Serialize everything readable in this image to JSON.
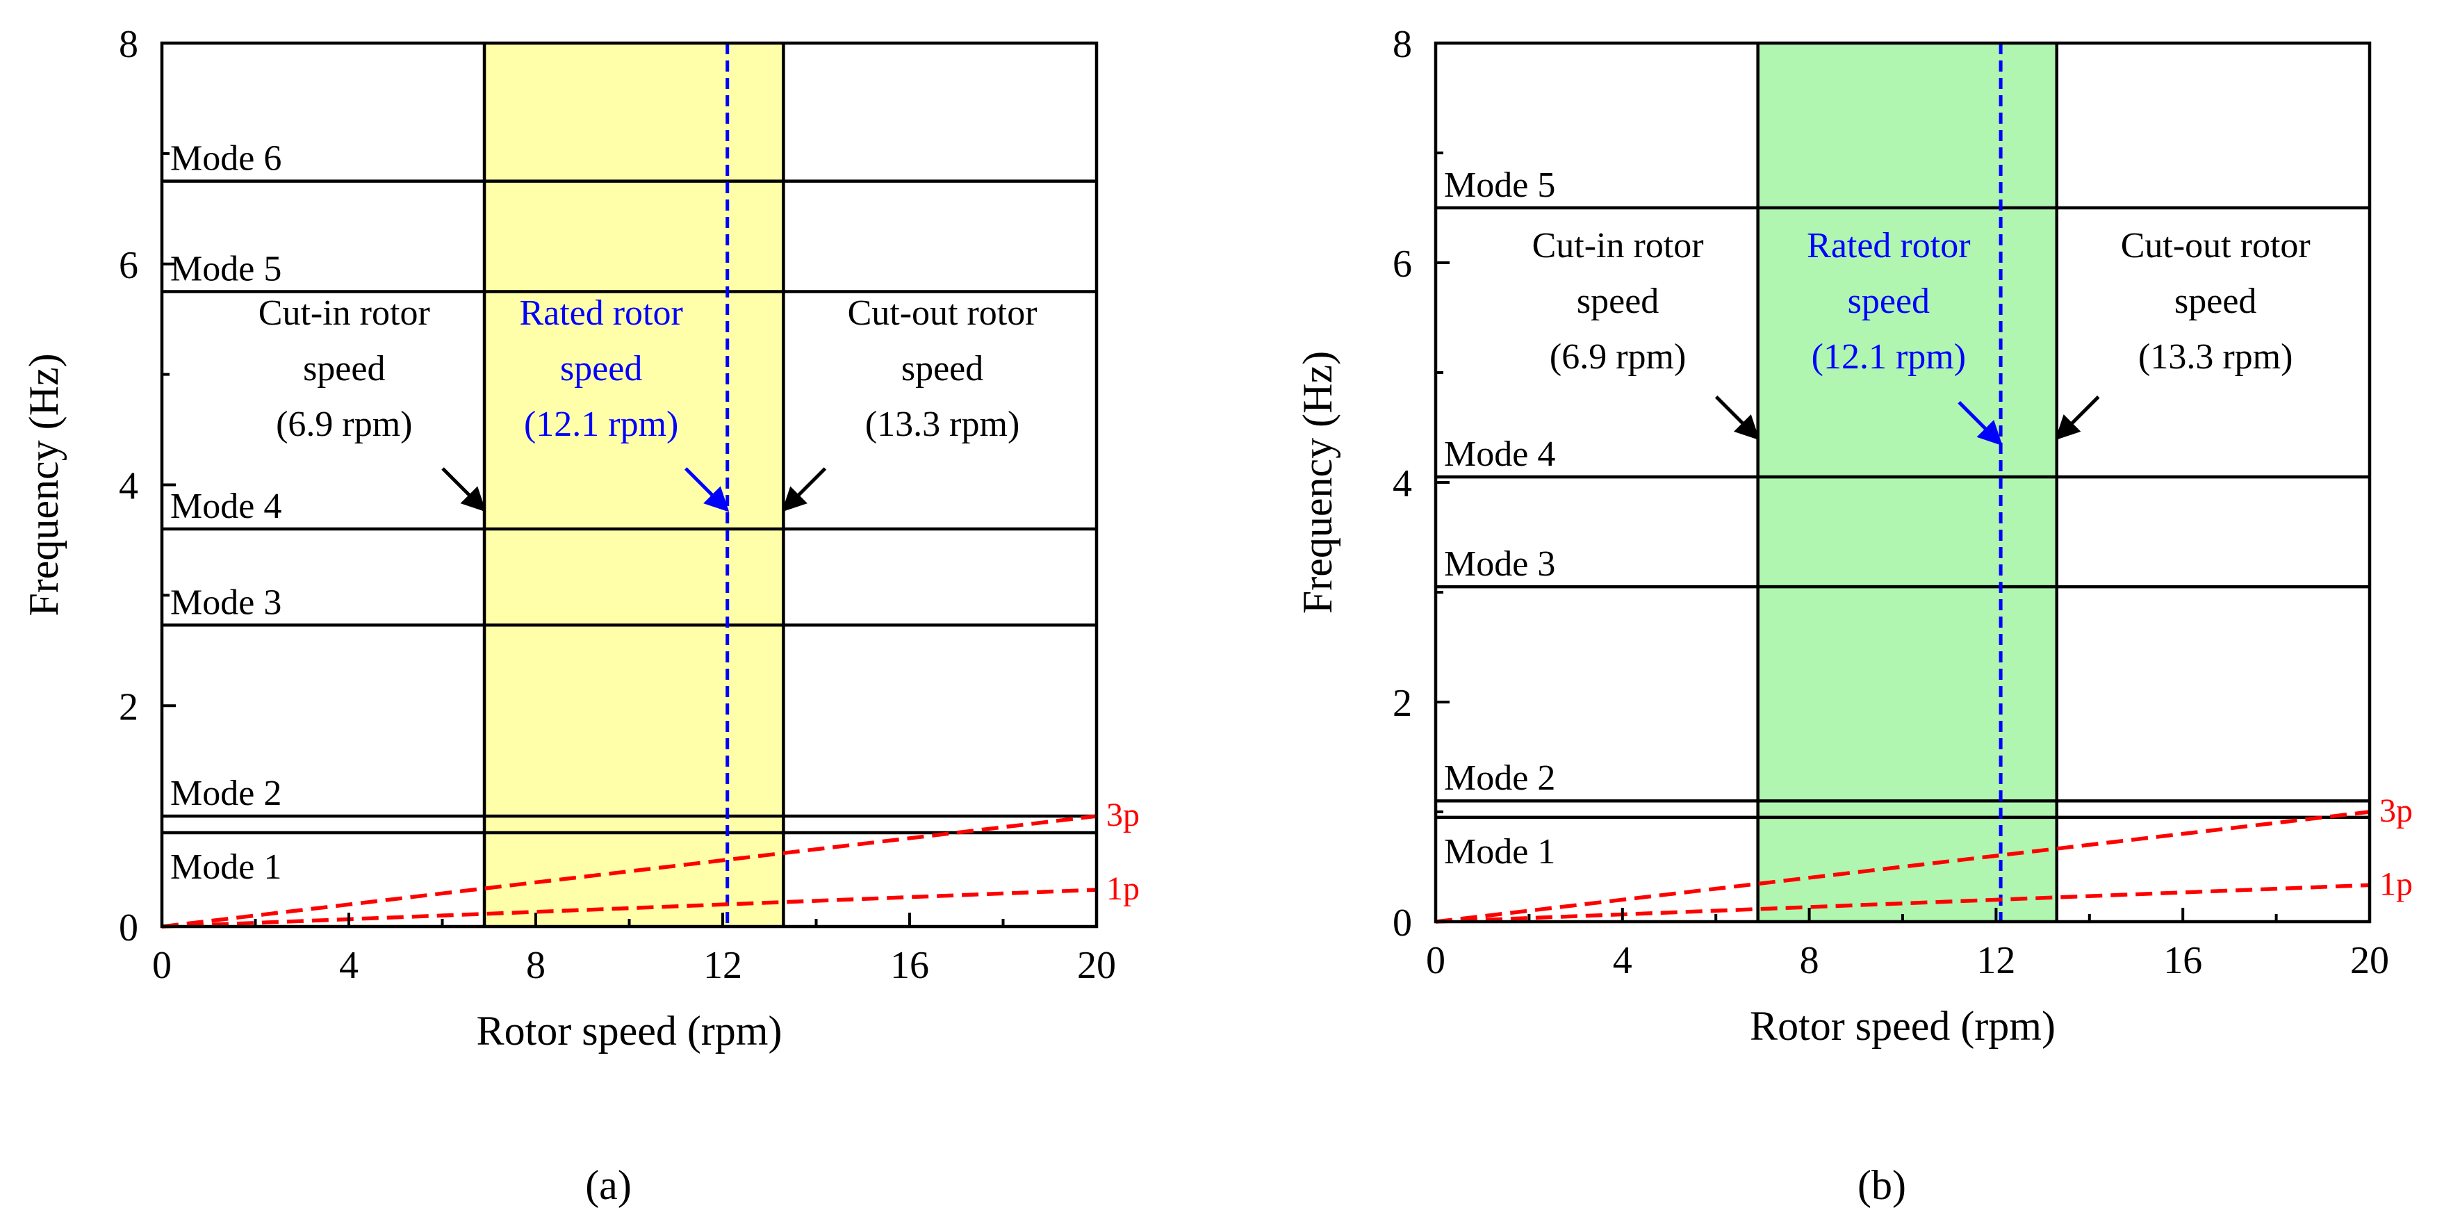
{
  "chart_data": [
    {
      "id": "a",
      "type": "line",
      "caption": "(a)",
      "xlabel": "Rotor speed (rpm)",
      "ylabel": "Frequency (Hz)",
      "xlim": [
        0,
        20
      ],
      "ylim": [
        0,
        8
      ],
      "xticks": [
        0,
        4,
        8,
        12,
        16,
        20
      ],
      "yticks": [
        0,
        2,
        4,
        6,
        8
      ],
      "band": {
        "from": 6.9,
        "to": 13.3,
        "color": "#ffffaa"
      },
      "rated_speed": 12.1,
      "modes": [
        {
          "label": "Mode 1",
          "value": 0.85
        },
        {
          "label": "Mode 2",
          "value": 1.0
        },
        {
          "label": "Mode 3",
          "value": 2.73
        },
        {
          "label": "Mode 4",
          "value": 3.6
        },
        {
          "label": "Mode 5",
          "value": 5.75
        },
        {
          "label": "Mode 6",
          "value": 6.75
        }
      ],
      "series": [
        {
          "name": "1p",
          "x": [
            0,
            20
          ],
          "y": [
            0,
            0.333
          ],
          "color": "#ff0000"
        },
        {
          "name": "3p",
          "x": [
            0,
            20
          ],
          "y": [
            0,
            1.0
          ],
          "color": "#ff0000"
        }
      ],
      "annotations": [
        {
          "lines": [
            "Cut-in rotor",
            "speed",
            "(6.9 rpm)"
          ],
          "color": "#000000",
          "at": [
            3.9,
            5.45
          ],
          "arrow_to": [
            6.9,
            3.77
          ]
        },
        {
          "lines": [
            "Rated rotor",
            "speed",
            "(12.1 rpm)"
          ],
          "color": "#0000ff",
          "at": [
            9.4,
            5.45
          ],
          "arrow_to": [
            12.1,
            3.77
          ]
        },
        {
          "lines": [
            "Cut-out rotor",
            "speed",
            "(13.3 rpm)"
          ],
          "color": "#000000",
          "at": [
            16.7,
            5.45
          ],
          "arrow_to": [
            13.3,
            3.77
          ]
        }
      ]
    },
    {
      "id": "b",
      "type": "line",
      "caption": "(b)",
      "xlabel": "Rotor speed (rpm)",
      "ylabel": "Frequency (Hz)",
      "xlim": [
        0,
        20
      ],
      "ylim": [
        0,
        8
      ],
      "xticks": [
        0,
        4,
        8,
        12,
        16,
        20
      ],
      "yticks": [
        0,
        2,
        4,
        6,
        8
      ],
      "band": {
        "from": 6.9,
        "to": 13.3,
        "color": "#b0f5b0"
      },
      "rated_speed": 12.1,
      "modes": [
        {
          "label": "Mode 1",
          "value": 0.95
        },
        {
          "label": "Mode 2",
          "value": 1.1
        },
        {
          "label": "Mode 3",
          "value": 3.05
        },
        {
          "label": "Mode 4",
          "value": 4.05
        },
        {
          "label": "Mode 5",
          "value": 6.5
        }
      ],
      "series": [
        {
          "name": "1p",
          "x": [
            0,
            20
          ],
          "y": [
            0,
            0.333
          ],
          "color": "#ff0000"
        },
        {
          "name": "3p",
          "x": [
            0,
            20
          ],
          "y": [
            0,
            1.0
          ],
          "color": "#ff0000"
        }
      ],
      "annotations": [
        {
          "lines": [
            "Cut-in rotor",
            "speed",
            "(6.9 rpm)"
          ],
          "color": "#000000",
          "at": [
            3.9,
            6.05
          ],
          "arrow_to": [
            6.9,
            4.4
          ]
        },
        {
          "lines": [
            "Rated rotor",
            "speed",
            "(12.1 rpm)"
          ],
          "color": "#0000ff",
          "at": [
            9.7,
            6.05
          ],
          "arrow_to": [
            12.1,
            4.35
          ]
        },
        {
          "lines": [
            "Cut-out rotor",
            "speed",
            "(13.3 rpm)"
          ],
          "color": "#000000",
          "at": [
            16.7,
            6.05
          ],
          "arrow_to": [
            13.3,
            4.4
          ]
        }
      ]
    }
  ]
}
